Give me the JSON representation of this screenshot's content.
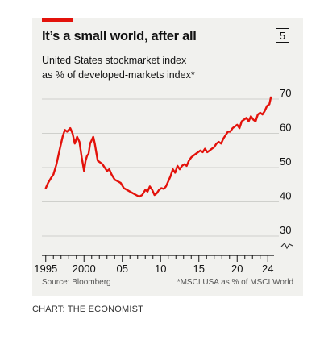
{
  "header": {
    "title": "It’s a small world, after all",
    "chart_number": "5",
    "subtitle_line1": "United States stockmarket index",
    "subtitle_line2": "as % of developed-markets index*"
  },
  "footer": {
    "source": "Source: Bloomberg",
    "note": "*MSCI USA as % of MSCI World",
    "credit": "CHART: THE ECONOMIST"
  },
  "colors": {
    "line": "#e3120b",
    "accent": "#e3120b",
    "background": "#f1f1ee"
  },
  "chart_data": {
    "type": "line",
    "title": "It’s a small world, after all",
    "ylabel": "",
    "xlabel": "",
    "ylim": [
      30,
      70
    ],
    "xlim": [
      1994.5,
      2024.5
    ],
    "y_axis_break": true,
    "y_ticks": [
      70,
      60,
      50,
      40,
      30
    ],
    "y_axis_side": "right",
    "x_tick_labels": [
      {
        "x": 1995,
        "label": "1995"
      },
      {
        "x": 2000,
        "label": "2000"
      },
      {
        "x": 2005,
        "label": "05"
      },
      {
        "x": 2010,
        "label": "10"
      },
      {
        "x": 2015,
        "label": "15"
      },
      {
        "x": 2020,
        "label": "20"
      },
      {
        "x": 2024,
        "label": "24"
      }
    ],
    "series": [
      {
        "name": "",
        "x": [
          1995.0,
          1995.3,
          1995.7,
          1996.0,
          1996.4,
          1996.8,
          1997.2,
          1997.5,
          1997.8,
          1998.2,
          1998.5,
          1998.8,
          1999.1,
          1999.4,
          1999.7,
          2000.0,
          2000.2,
          2000.4,
          2000.6,
          2000.8,
          2001.0,
          2001.2,
          2001.4,
          2001.6,
          2001.8,
          2002.1,
          2002.4,
          2002.7,
          2003.0,
          2003.3,
          2003.6,
          2004.0,
          2004.4,
          2004.8,
          2005.2,
          2005.6,
          2006.0,
          2006.4,
          2006.8,
          2007.2,
          2007.6,
          2008.0,
          2008.3,
          2008.6,
          2008.9,
          2009.2,
          2009.5,
          2009.8,
          2010.1,
          2010.4,
          2010.7,
          2011.0,
          2011.3,
          2011.6,
          2011.9,
          2012.2,
          2012.5,
          2012.8,
          2013.1,
          2013.4,
          2013.7,
          2014.0,
          2014.3,
          2014.6,
          2014.9,
          2015.2,
          2015.5,
          2015.8,
          2016.1,
          2016.4,
          2016.7,
          2017.0,
          2017.3,
          2017.6,
          2017.9,
          2018.2,
          2018.5,
          2018.8,
          2019.1,
          2019.4,
          2019.7,
          2020.0,
          2020.3,
          2020.6,
          2020.9,
          2021.2,
          2021.5,
          2021.8,
          2022.1,
          2022.4,
          2022.7,
          2023.0,
          2023.3,
          2023.6,
          2023.9,
          2024.2,
          2024.4
        ],
        "values": [
          44.0,
          45.5,
          47.0,
          48.0,
          51.0,
          55.0,
          59.0,
          61.0,
          60.5,
          61.5,
          60.0,
          57.0,
          59.0,
          57.5,
          53.0,
          49.0,
          52.0,
          53.5,
          54.0,
          57.0,
          58.0,
          59.0,
          57.0,
          54.5,
          52.0,
          51.5,
          51.0,
          50.0,
          49.0,
          49.5,
          48.0,
          46.5,
          46.0,
          45.5,
          44.0,
          43.5,
          43.0,
          42.5,
          42.0,
          41.5,
          42.0,
          43.5,
          43.0,
          44.5,
          43.5,
          42.0,
          42.5,
          43.5,
          44.0,
          43.8,
          44.5,
          46.0,
          47.5,
          49.5,
          48.5,
          50.5,
          49.5,
          50.5,
          51.0,
          50.5,
          52.0,
          53.0,
          53.5,
          54.0,
          54.5,
          55.0,
          54.5,
          55.5,
          54.5,
          55.0,
          55.5,
          56.0,
          57.0,
          57.5,
          57.0,
          58.5,
          59.5,
          60.5,
          60.5,
          61.5,
          62.0,
          62.5,
          61.5,
          63.5,
          64.0,
          64.5,
          63.5,
          65.0,
          64.0,
          63.5,
          65.5,
          66.0,
          65.5,
          66.5,
          68.0,
          68.5,
          70.5
        ]
      }
    ]
  }
}
